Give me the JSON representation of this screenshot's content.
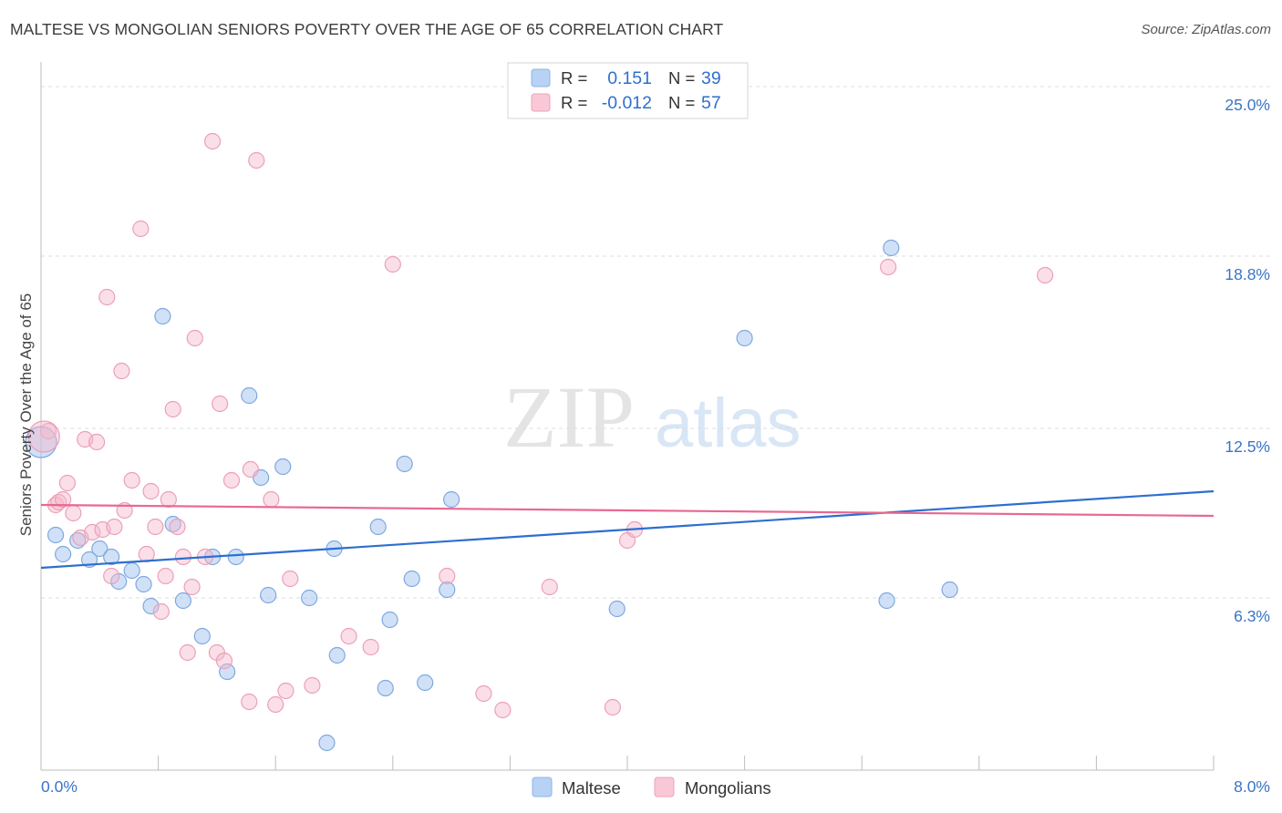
{
  "header": {
    "title": "MALTESE VS MONGOLIAN SENIORS POVERTY OVER THE AGE OF 65 CORRELATION CHART",
    "source": "Source: ZipAtlas.com"
  },
  "watermark": {
    "zip": "ZIP",
    "atlas": "atlas"
  },
  "chart_data": {
    "type": "scatter",
    "title": "MALTESE VS MONGOLIAN SENIORS POVERTY OVER THE AGE OF 65 CORRELATION CHART",
    "ylabel": "Seniors Poverty Over the Age of 65",
    "xlabel": "",
    "xlim": [
      0,
      8
    ],
    "ylim": [
      0,
      25.5
    ],
    "x_tick_labels": [
      "0.0%",
      "8.0%"
    ],
    "y_ticks": [
      6.3,
      12.5,
      18.8,
      25.0
    ],
    "y_tick_labels": [
      "6.3%",
      "12.5%",
      "18.8%",
      "25.0%"
    ],
    "grid": "horizontal dashed",
    "legend_position": "top-center",
    "colors": {
      "maltese": "#a9c8f0",
      "maltese_line": "#2c6fcf",
      "mongolians": "#f5b8cb",
      "mongolians_line": "#e8698f",
      "value_text": "#2f6fce"
    },
    "stats": [
      {
        "r_label": "R =",
        "r_value": "0.151",
        "n_label": "N =",
        "n_value": "39"
      },
      {
        "r_label": "R =",
        "r_value": "-0.012",
        "n_label": "N =",
        "n_value": "57"
      }
    ],
    "series": [
      {
        "name": "Maltese",
        "trend": [
          [
            0,
            7.4
          ],
          [
            8,
            10.2
          ]
        ],
        "points": [
          [
            0.0,
            12.0
          ],
          [
            0.1,
            8.6
          ],
          [
            0.15,
            7.9
          ],
          [
            0.25,
            8.4
          ],
          [
            0.33,
            7.7
          ],
          [
            0.4,
            8.1
          ],
          [
            0.48,
            7.8
          ],
          [
            0.53,
            6.9
          ],
          [
            0.62,
            7.3
          ],
          [
            0.7,
            6.8
          ],
          [
            0.75,
            6.0
          ],
          [
            0.83,
            16.6
          ],
          [
            0.9,
            9.0
          ],
          [
            0.97,
            6.2
          ],
          [
            1.1,
            4.9
          ],
          [
            1.17,
            7.8
          ],
          [
            1.27,
            3.6
          ],
          [
            1.33,
            7.8
          ],
          [
            1.42,
            13.7
          ],
          [
            1.5,
            10.7
          ],
          [
            1.55,
            6.4
          ],
          [
            1.65,
            11.1
          ],
          [
            1.83,
            6.3
          ],
          [
            1.95,
            1.0
          ],
          [
            2.0,
            8.1
          ],
          [
            2.02,
            4.2
          ],
          [
            2.3,
            8.9
          ],
          [
            2.35,
            3.0
          ],
          [
            2.38,
            5.5
          ],
          [
            2.48,
            11.2
          ],
          [
            2.53,
            7.0
          ],
          [
            2.62,
            3.2
          ],
          [
            2.77,
            6.6
          ],
          [
            2.8,
            9.9
          ],
          [
            3.93,
            5.9
          ],
          [
            4.8,
            15.8
          ],
          [
            5.77,
            6.2
          ],
          [
            5.8,
            19.1
          ],
          [
            6.2,
            6.6
          ]
        ]
      },
      {
        "name": "Mongolians",
        "trend": [
          [
            0,
            9.7
          ],
          [
            8,
            9.3
          ]
        ],
        "points": [
          [
            0.05,
            12.4
          ],
          [
            0.1,
            9.7
          ],
          [
            0.12,
            9.8
          ],
          [
            0.15,
            9.9
          ],
          [
            0.18,
            10.5
          ],
          [
            0.22,
            9.4
          ],
          [
            0.27,
            8.5
          ],
          [
            0.3,
            12.1
          ],
          [
            0.35,
            8.7
          ],
          [
            0.38,
            12.0
          ],
          [
            0.42,
            8.8
          ],
          [
            0.45,
            17.3
          ],
          [
            0.48,
            7.1
          ],
          [
            0.5,
            8.9
          ],
          [
            0.55,
            14.6
          ],
          [
            0.57,
            9.5
          ],
          [
            0.62,
            10.6
          ],
          [
            0.68,
            19.8
          ],
          [
            0.72,
            7.9
          ],
          [
            0.75,
            10.2
          ],
          [
            0.78,
            8.9
          ],
          [
            0.82,
            5.8
          ],
          [
            0.85,
            7.1
          ],
          [
            0.87,
            9.9
          ],
          [
            0.9,
            13.2
          ],
          [
            0.93,
            8.9
          ],
          [
            0.97,
            7.8
          ],
          [
            1.0,
            4.3
          ],
          [
            1.03,
            6.7
          ],
          [
            1.05,
            15.8
          ],
          [
            1.12,
            7.8
          ],
          [
            1.17,
            23.0
          ],
          [
            1.2,
            4.3
          ],
          [
            1.22,
            13.4
          ],
          [
            1.25,
            4.0
          ],
          [
            1.3,
            10.6
          ],
          [
            1.42,
            2.5
          ],
          [
            1.43,
            11.0
          ],
          [
            1.47,
            22.3
          ],
          [
            1.57,
            9.9
          ],
          [
            1.6,
            2.4
          ],
          [
            1.67,
            2.9
          ],
          [
            1.7,
            7.0
          ],
          [
            1.85,
            3.1
          ],
          [
            2.1,
            4.9
          ],
          [
            2.25,
            4.5
          ],
          [
            2.4,
            18.5
          ],
          [
            2.77,
            7.1
          ],
          [
            3.02,
            2.8
          ],
          [
            3.15,
            2.2
          ],
          [
            3.47,
            6.7
          ],
          [
            3.9,
            2.3
          ],
          [
            4.0,
            8.4
          ],
          [
            4.05,
            8.8
          ],
          [
            5.78,
            18.4
          ],
          [
            6.85,
            18.1
          ],
          [
            0.02,
            12.2
          ]
        ]
      }
    ]
  },
  "legend_bottom": [
    {
      "label": "Maltese"
    },
    {
      "label": "Mongolians"
    }
  ]
}
